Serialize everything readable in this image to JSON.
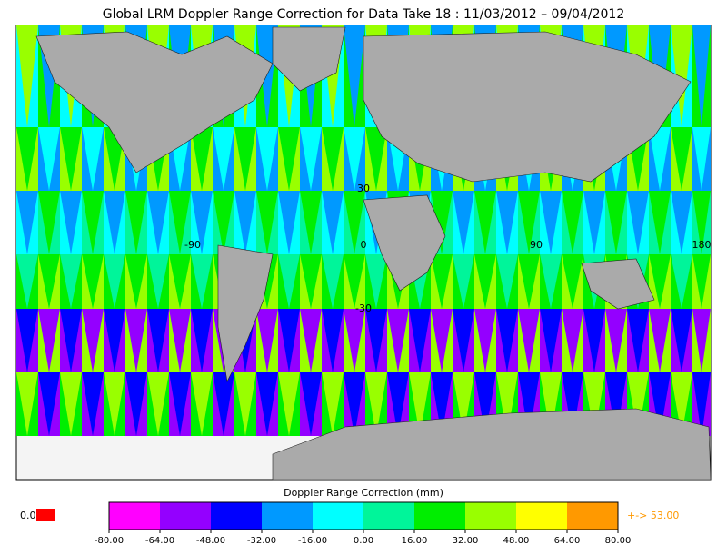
{
  "title": "Global LRM Doppler Range Correction for Data Take 18 : 11/03/2012 – 09/04/2012",
  "map": {
    "grid_labels": [
      "30",
      "-90",
      "0",
      "90",
      "180",
      "-30"
    ]
  },
  "colorbar": {
    "label": "Doppler Range Correction (mm)",
    "ticks": [
      {
        "value": -80,
        "label": "-80.00"
      },
      {
        "value": -64,
        "label": "-64.00"
      },
      {
        "value": -48,
        "label": "-48.00"
      },
      {
        "value": -32,
        "label": "-32.00"
      },
      {
        "value": -16,
        "label": "-16.00"
      },
      {
        "value": 0,
        "label": "0.00"
      },
      {
        "value": 16,
        "label": "16.00"
      },
      {
        "value": 32,
        "label": "32.00"
      },
      {
        "value": 48,
        "label": "48.00"
      },
      {
        "value": 64,
        "label": "64.00"
      },
      {
        "value": 80,
        "label": "80.00"
      }
    ],
    "colors": [
      "#ff00ff",
      "#9400ff",
      "#0000ff",
      "#0099ff",
      "#00ffff",
      "#00f59a",
      "#00ee00",
      "#99ff00",
      "#ffff00",
      "#ff9900"
    ],
    "underflow_label": "0.0",
    "underflow_color": "#ff0000",
    "overflow_label": "+-> 53.00",
    "overflow_color": "#ff9900"
  }
}
